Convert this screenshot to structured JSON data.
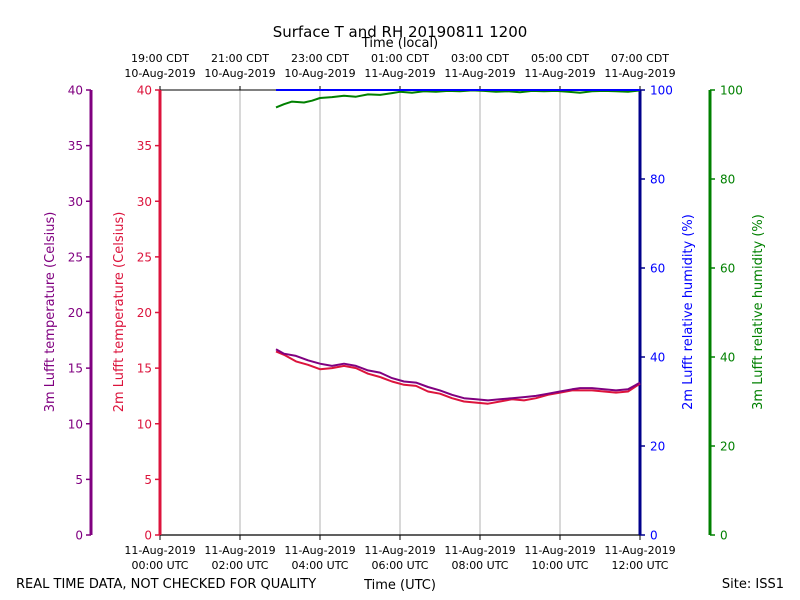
{
  "chart_data": {
    "type": "line",
    "title": "Surface T and RH 20190811 1200",
    "top_axis_title": "Time (local)",
    "bottom_axis_title": "Time (UTC)",
    "y_left_outer_label": "3m Lufft temperature (Celsius)",
    "y_left_inner_label": "2m Lufft temperature (Celsius)",
    "y_right_inner_label": "2m Lufft relative humidity (%)",
    "y_right_outer_label": "3m Lufft relative humidity (%)",
    "footer_left": "REAL TIME DATA, NOT CHECKED FOR QUALITY",
    "footer_right": "Site: ISS1",
    "x_range_hours": [
      0,
      12
    ],
    "temp_ylim": [
      0,
      40
    ],
    "rh_ylim": [
      0,
      100
    ],
    "temp_ticks": [
      "0",
      "5",
      "10",
      "15",
      "20",
      "25",
      "30",
      "35",
      "40"
    ],
    "rh_ticks": [
      "0",
      "20",
      "40",
      "60",
      "80",
      "100"
    ],
    "grid_x": true,
    "bottom_ticks": [
      {
        "hour": 0,
        "line1": "11-Aug-2019",
        "line2": "00:00 UTC"
      },
      {
        "hour": 2,
        "line1": "11-Aug-2019",
        "line2": "02:00 UTC"
      },
      {
        "hour": 4,
        "line1": "11-Aug-2019",
        "line2": "04:00 UTC"
      },
      {
        "hour": 6,
        "line1": "11-Aug-2019",
        "line2": "06:00 UTC"
      },
      {
        "hour": 8,
        "line1": "11-Aug-2019",
        "line2": "08:00 UTC"
      },
      {
        "hour": 10,
        "line1": "11-Aug-2019",
        "line2": "10:00 UTC"
      },
      {
        "hour": 12,
        "line1": "11-Aug-2019",
        "line2": "12:00 UTC"
      }
    ],
    "top_ticks": [
      {
        "hour": 0,
        "line1": "19:00 CDT",
        "line2": "10-Aug-2019"
      },
      {
        "hour": 2,
        "line1": "21:00 CDT",
        "line2": "10-Aug-2019"
      },
      {
        "hour": 4,
        "line1": "23:00 CDT",
        "line2": "10-Aug-2019"
      },
      {
        "hour": 6,
        "line1": "01:00 CDT",
        "line2": "11-Aug-2019"
      },
      {
        "hour": 8,
        "line1": "03:00 CDT",
        "line2": "11-Aug-2019"
      },
      {
        "hour": 10,
        "line1": "05:00 CDT",
        "line2": "11-Aug-2019"
      },
      {
        "hour": 12,
        "line1": "07:00 CDT",
        "line2": "11-Aug-2019"
      }
    ],
    "series": [
      {
        "name": "3m Lufft temperature",
        "axis": "temp",
        "color": "#800080",
        "x": [
          2.9,
          3.1,
          3.4,
          3.7,
          4.0,
          4.3,
          4.6,
          4.9,
          5.2,
          5.5,
          5.8,
          6.1,
          6.4,
          6.7,
          7.0,
          7.3,
          7.6,
          7.9,
          8.2,
          8.5,
          8.8,
          9.1,
          9.4,
          9.7,
          10.0,
          10.3,
          10.5,
          10.8,
          11.1,
          11.4,
          11.7,
          12.0
        ],
        "values": [
          16.7,
          16.3,
          16.1,
          15.7,
          15.4,
          15.2,
          15.4,
          15.2,
          14.8,
          14.6,
          14.1,
          13.8,
          13.7,
          13.3,
          13.0,
          12.6,
          12.3,
          12.2,
          12.1,
          12.2,
          12.3,
          12.4,
          12.5,
          12.7,
          12.9,
          13.1,
          13.2,
          13.2,
          13.1,
          13.0,
          13.1,
          13.7
        ]
      },
      {
        "name": "2m Lufft temperature",
        "axis": "temp",
        "color": "#dc143c",
        "x": [
          2.9,
          3.1,
          3.4,
          3.7,
          4.0,
          4.3,
          4.6,
          4.9,
          5.2,
          5.5,
          5.8,
          6.1,
          6.4,
          6.7,
          7.0,
          7.3,
          7.6,
          7.9,
          8.2,
          8.5,
          8.8,
          9.1,
          9.4,
          9.7,
          10.0,
          10.3,
          10.5,
          10.8,
          11.1,
          11.4,
          11.7,
          12.0
        ],
        "values": [
          16.5,
          16.2,
          15.6,
          15.3,
          14.9,
          15.0,
          15.2,
          15.0,
          14.5,
          14.2,
          13.8,
          13.5,
          13.4,
          12.9,
          12.7,
          12.3,
          12.0,
          11.9,
          11.8,
          12.0,
          12.2,
          12.1,
          12.3,
          12.6,
          12.8,
          13.0,
          13.0,
          13.0,
          12.9,
          12.8,
          12.9,
          13.6
        ]
      },
      {
        "name": "2m Lufft relative humidity",
        "axis": "rh",
        "color": "#0000ff",
        "x": [
          2.9,
          12.0
        ],
        "values": [
          100,
          100
        ]
      },
      {
        "name": "3m Lufft relative humidity",
        "axis": "rh",
        "color": "#008000",
        "x": [
          2.9,
          3.1,
          3.3,
          3.6,
          3.8,
          4.0,
          4.3,
          4.6,
          4.9,
          5.2,
          5.5,
          5.8,
          6.0,
          6.3,
          6.6,
          6.9,
          7.2,
          7.5,
          7.8,
          8.1,
          8.4,
          8.7,
          9.0,
          9.3,
          9.6,
          9.9,
          10.2,
          10.5,
          10.8,
          11.1,
          11.4,
          11.7,
          12.0
        ],
        "values": [
          96.1,
          96.8,
          97.4,
          97.2,
          97.6,
          98.2,
          98.4,
          98.7,
          98.5,
          99.0,
          98.9,
          99.3,
          99.6,
          99.4,
          99.7,
          99.6,
          99.8,
          99.7,
          99.9,
          99.8,
          99.6,
          99.7,
          99.5,
          99.8,
          99.7,
          99.8,
          99.6,
          99.4,
          99.7,
          99.8,
          99.7,
          99.6,
          99.9
        ]
      }
    ]
  },
  "colors": {
    "temp3": "#800080",
    "temp2": "#dc143c",
    "rh2": "#00008b",
    "rh2_text": "#0000ff",
    "rh3": "#008000",
    "grid": "#b0b0b0"
  }
}
